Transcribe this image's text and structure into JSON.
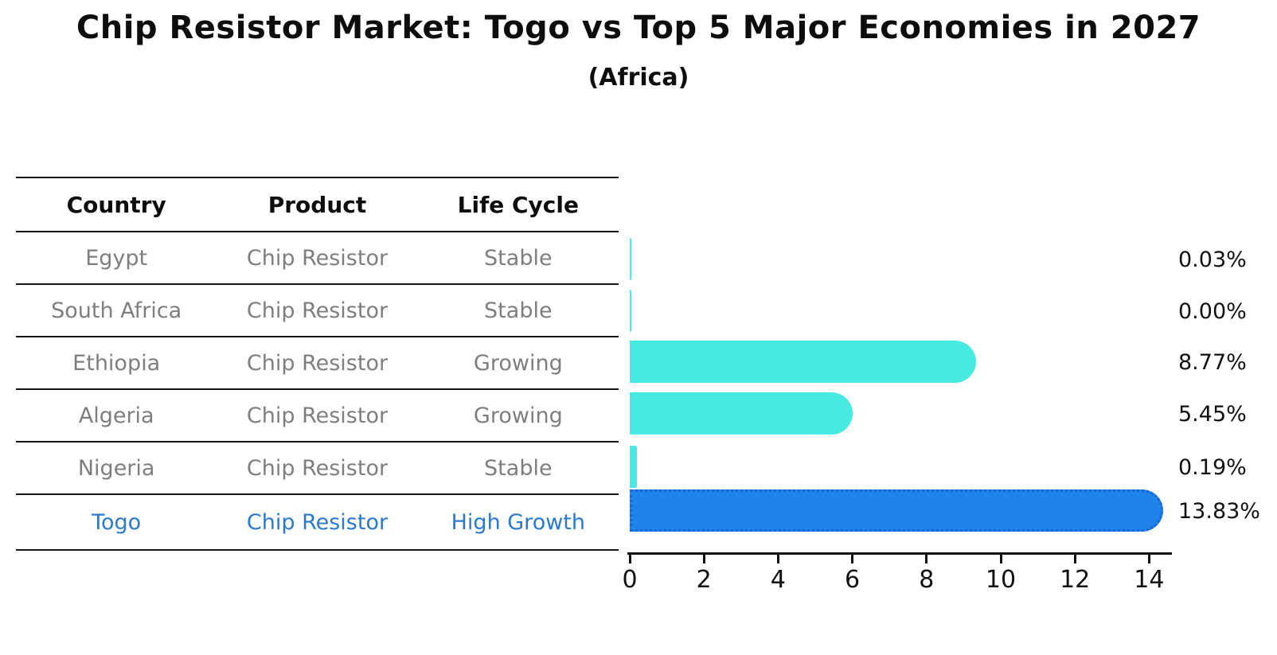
{
  "title": "Chip Resistor Market: Togo vs Top 5 Major Economies in 2027",
  "subtitle": "(Africa)",
  "table": {
    "headers": [
      "Country",
      "Product",
      "Life Cycle"
    ],
    "rows": [
      {
        "country": "Egypt",
        "product": "Chip Resistor",
        "life_cycle": "Stable",
        "highlight": false
      },
      {
        "country": "South Africa",
        "product": "Chip Resistor",
        "life_cycle": "Stable",
        "highlight": false
      },
      {
        "country": "Ethiopia",
        "product": "Chip Resistor",
        "life_cycle": "Growing",
        "highlight": false
      },
      {
        "country": "Algeria",
        "product": "Chip Resistor",
        "life_cycle": "Growing",
        "highlight": false
      },
      {
        "country": "Nigeria",
        "product": "Chip Resistor",
        "life_cycle": "Stable",
        "highlight": false
      },
      {
        "country": "Togo",
        "product": "Chip Resistor",
        "life_cycle": "High Growth",
        "highlight": true
      }
    ]
  },
  "chart_data": {
    "type": "bar",
    "orientation": "horizontal",
    "title": "Chip Resistor Market: Togo vs Top 5 Major Economies in 2027",
    "subtitle": "(Africa)",
    "categories": [
      "Egypt",
      "South Africa",
      "Ethiopia",
      "Algeria",
      "Nigeria",
      "Togo"
    ],
    "values": [
      0.03,
      0.0,
      8.77,
      5.45,
      0.19,
      13.83
    ],
    "value_labels": [
      "0.03%",
      "0.00%",
      "8.77%",
      "5.45%",
      "0.19%",
      "13.83%"
    ],
    "xlim": [
      0,
      14
    ],
    "x_ticks": [
      0,
      2,
      4,
      6,
      8,
      10,
      12,
      14
    ],
    "grid": false,
    "legend": false,
    "highlight_index": 5,
    "colors": {
      "bar": "#47eae0",
      "highlight_bar": "#1f83ec",
      "highlight_border": "#1565d8",
      "highlight_text": "#2b79cd",
      "table_text": "#7e7e7e",
      "axis": "#111111"
    }
  }
}
